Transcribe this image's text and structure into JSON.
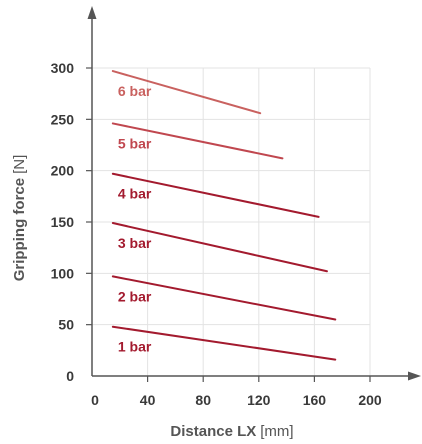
{
  "chart_data": {
    "type": "line",
    "xlabel": "Distance LX",
    "xunit": "[mm]",
    "ylabel": "Gripping force",
    "yunit": "[N]",
    "xlim": [
      0,
      200
    ],
    "ylim": [
      0,
      300
    ],
    "xticks": [
      0,
      40,
      80,
      120,
      160,
      200
    ],
    "yticks": [
      0,
      50,
      100,
      150,
      200,
      250,
      300
    ],
    "grid": true,
    "series": [
      {
        "name": "1 bar",
        "color": "#a31a2e",
        "x": [
          15,
          175
        ],
        "y": [
          48,
          16
        ]
      },
      {
        "name": "2 bar",
        "color": "#a31a2e",
        "x": [
          15,
          175
        ],
        "y": [
          97,
          55
        ]
      },
      {
        "name": "3 bar",
        "color": "#a31a2e",
        "x": [
          15,
          169
        ],
        "y": [
          149,
          102
        ]
      },
      {
        "name": "4 bar",
        "color": "#a31a2e",
        "x": [
          15,
          163
        ],
        "y": [
          197,
          155
        ]
      },
      {
        "name": "5 bar",
        "color": "#c0474f",
        "x": [
          15,
          137
        ],
        "y": [
          246,
          212
        ]
      },
      {
        "name": "6 bar",
        "color": "#c9615f",
        "x": [
          15,
          121
        ],
        "y": [
          297,
          256
        ]
      }
    ]
  }
}
